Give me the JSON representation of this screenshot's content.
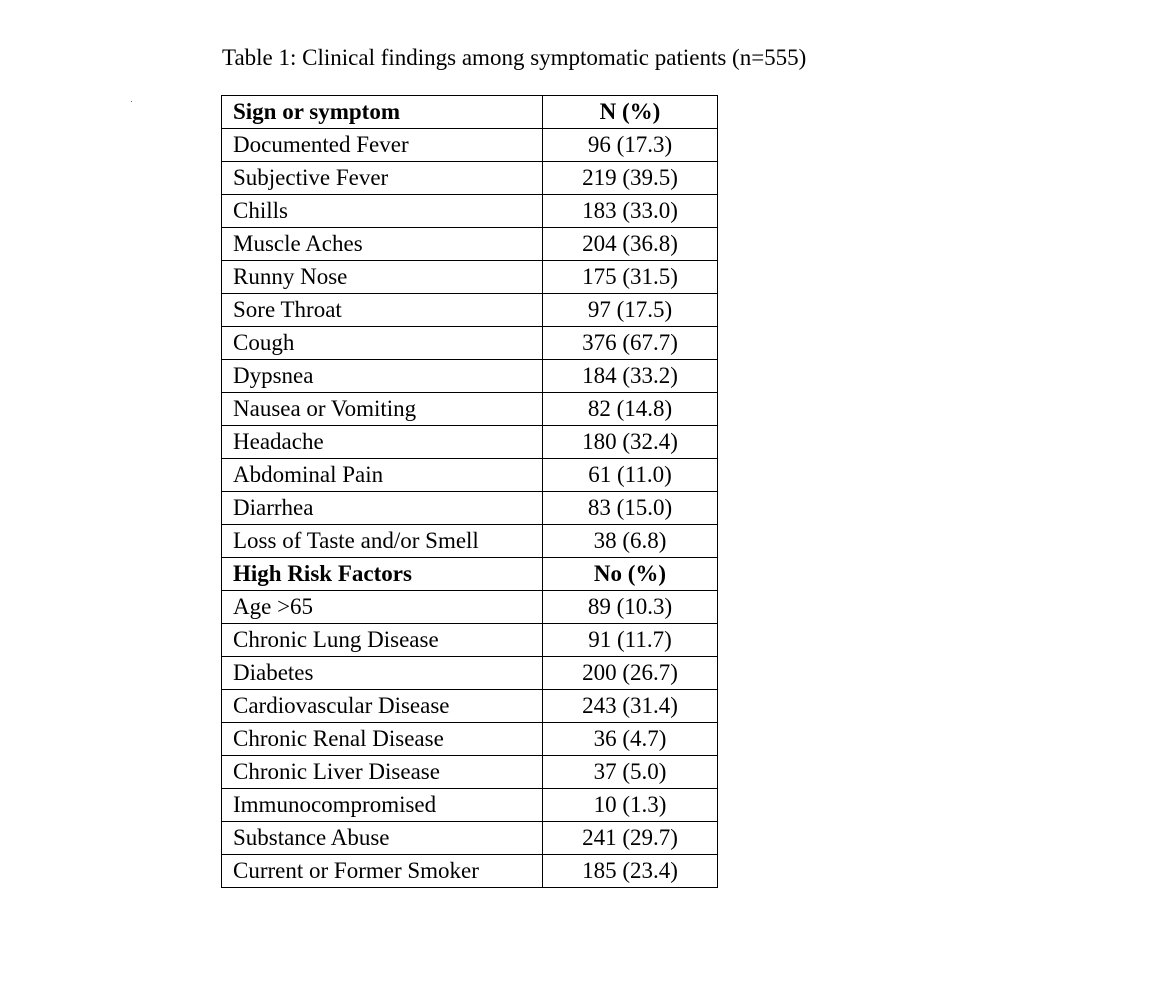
{
  "title": "Table 1: Clinical findings among symptomatic patients (n=555)",
  "table": {
    "sections": [
      {
        "header": [
          "Sign or symptom",
          "N (%)"
        ],
        "rows": [
          [
            "Documented Fever",
            "96 (17.3)"
          ],
          [
            "Subjective Fever",
            "219 (39.5)"
          ],
          [
            "Chills",
            "183 (33.0)"
          ],
          [
            "Muscle Aches",
            "204 (36.8)"
          ],
          [
            "Runny Nose",
            "175 (31.5)"
          ],
          [
            "Sore Throat",
            "97 (17.5)"
          ],
          [
            "Cough",
            "376 (67.7)"
          ],
          [
            "Dypsnea",
            "184 (33.2)"
          ],
          [
            "Nausea or Vomiting",
            "82 (14.8)"
          ],
          [
            "Headache",
            "180 (32.4)"
          ],
          [
            "Abdominal Pain",
            "61 (11.0)"
          ],
          [
            "Diarrhea",
            "83 (15.0)"
          ],
          [
            "Loss of Taste and/or Smell",
            "38 (6.8)"
          ]
        ]
      },
      {
        "header": [
          "High Risk Factors",
          "No (%)"
        ],
        "rows": [
          [
            "Age >65",
            "89 (10.3)"
          ],
          [
            "Chronic Lung Disease",
            "91 (11.7)"
          ],
          [
            "Diabetes",
            "200 (26.7)"
          ],
          [
            "Cardiovascular Disease",
            "243 (31.4)"
          ],
          [
            "Chronic Renal Disease",
            "36 (4.7)"
          ],
          [
            "Chronic Liver Disease",
            "37 (5.0)"
          ],
          [
            "Immunocompromised",
            "10 (1.3)"
          ],
          [
            "Substance Abuse",
            "241 (29.7)"
          ],
          [
            "Current or Former Smoker",
            "185 (23.4)"
          ]
        ]
      }
    ]
  }
}
